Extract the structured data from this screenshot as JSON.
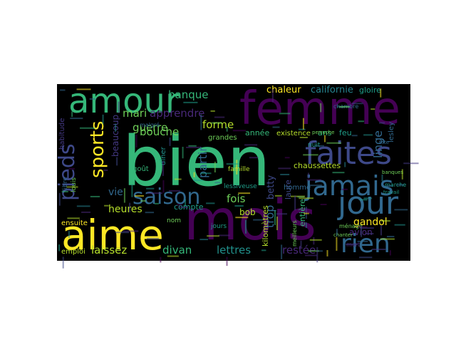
{
  "word_cloud": {
    "background": "#000000",
    "palette": [
      "#fde725",
      "#35b779",
      "#31688e",
      "#440154",
      "#21918c",
      "#3e4989",
      "#482878",
      "#26828e",
      "#1f9e89",
      "#6ece58",
      "#b5de2b",
      "#443983"
    ],
    "words": [
      {
        "text": "bien",
        "color": "#35b779"
      },
      {
        "text": "mois",
        "color": "#440154"
      },
      {
        "text": "femme",
        "color": "#440154"
      },
      {
        "text": "aime",
        "color": "#fde725"
      },
      {
        "text": "amour",
        "color": "#35b779"
      },
      {
        "text": "faites",
        "color": "#3e4989"
      },
      {
        "text": "jour",
        "color": "#31688e"
      },
      {
        "text": "jamais",
        "color": "#31688e"
      },
      {
        "text": "rien",
        "color": "#31688e"
      },
      {
        "text": "saison",
        "color": "#31688e"
      },
      {
        "text": "pieds",
        "color": "#3e4989"
      },
      {
        "text": "sports",
        "color": "#fde725"
      },
      {
        "text": "apprendre",
        "color": "#482878"
      },
      {
        "text": "banque",
        "color": "#35b779"
      },
      {
        "text": "mari",
        "color": "#6ece58"
      },
      {
        "text": "guerre",
        "color": "#6ece58"
      },
      {
        "text": "forme",
        "color": "#b5de2b"
      },
      {
        "text": "bouche",
        "color": "#6ece58"
      },
      {
        "text": "partir",
        "color": "#31688e"
      },
      {
        "text": "vie",
        "color": "#31688e"
      },
      {
        "text": "beaucoup",
        "color": "#443983"
      },
      {
        "text": "heures",
        "color": "#b5de2b"
      },
      {
        "text": "compte",
        "color": "#1f9e89"
      },
      {
        "text": "divan",
        "color": "#35b779"
      },
      {
        "text": "lettres",
        "color": "#21918c"
      },
      {
        "text": "restée",
        "color": "#482878"
      },
      {
        "text": "laissez",
        "color": "#b5de2b"
      },
      {
        "text": "trop",
        "color": "#31688e"
      },
      {
        "text": "fois",
        "color": "#6ece58"
      },
      {
        "text": "bob",
        "color": "#b5de2b"
      },
      {
        "text": "gandol",
        "color": "#fde725"
      },
      {
        "text": "avion",
        "color": "#482878"
      },
      {
        "text": "linge",
        "color": "#31688e"
      },
      {
        "text": "chaleur",
        "color": "#fde725"
      },
      {
        "text": "californie",
        "color": "#26828e"
      },
      {
        "text": "gloire",
        "color": "#1f9e89"
      },
      {
        "text": "chaussettes",
        "color": "#b5de2b"
      },
      {
        "text": "betty",
        "color": "#3e4989"
      },
      {
        "text": "kilomètres",
        "color": "#b5de2b"
      },
      {
        "text": "entière",
        "color": "#35b779"
      },
      {
        "text": "laure",
        "color": "#3e4989"
      },
      {
        "text": "homme",
        "color": "#31688e"
      },
      {
        "text": "lessiveuse",
        "color": "#1f9e89"
      },
      {
        "text": "famille",
        "color": "#b5de2b"
      },
      {
        "text": "année",
        "color": "#35b779"
      },
      {
        "text": "existence",
        "color": "#b5de2b"
      },
      {
        "text": "ans",
        "color": "#35b779"
      },
      {
        "text": "feu",
        "color": "#1f9e89"
      },
      {
        "text": "grandes",
        "color": "#6ece58"
      },
      {
        "text": "jours",
        "color": "#1f9e89"
      },
      {
        "text": "ensuite",
        "color": "#fde725"
      },
      {
        "text": "emploi",
        "color": "#b5de2b"
      },
      {
        "text": "libre",
        "color": "#31688e"
      },
      {
        "text": "louis",
        "color": "#6ece58"
      },
      {
        "text": "goût",
        "color": "#35b779"
      },
      {
        "text": "nom",
        "color": "#6ece58"
      },
      {
        "text": "malgré",
        "color": "#31688e"
      },
      {
        "text": "habitude",
        "color": "#443983"
      },
      {
        "text": "lesley",
        "color": "#31688e"
      },
      {
        "text": "marche",
        "color": "#1f9e89"
      },
      {
        "text": "meilleurs",
        "color": "#6ece58"
      },
      {
        "text": "nuit",
        "color": "#1f9e89"
      },
      {
        "text": "ménage",
        "color": "#6ece58"
      },
      {
        "text": "mort",
        "color": "#482878"
      },
      {
        "text": "chambre",
        "color": "#31688e"
      },
      {
        "text": "tête",
        "color": "#31688e"
      },
      {
        "text": "travail",
        "color": "#1f9e89"
      },
      {
        "text": "dîner",
        "color": "#21918c"
      },
      {
        "text": "banques",
        "color": "#6ece58"
      },
      {
        "text": "chanter",
        "color": "#6ece58"
      },
      {
        "text": "perruche",
        "color": "#6ece58"
      }
    ]
  }
}
